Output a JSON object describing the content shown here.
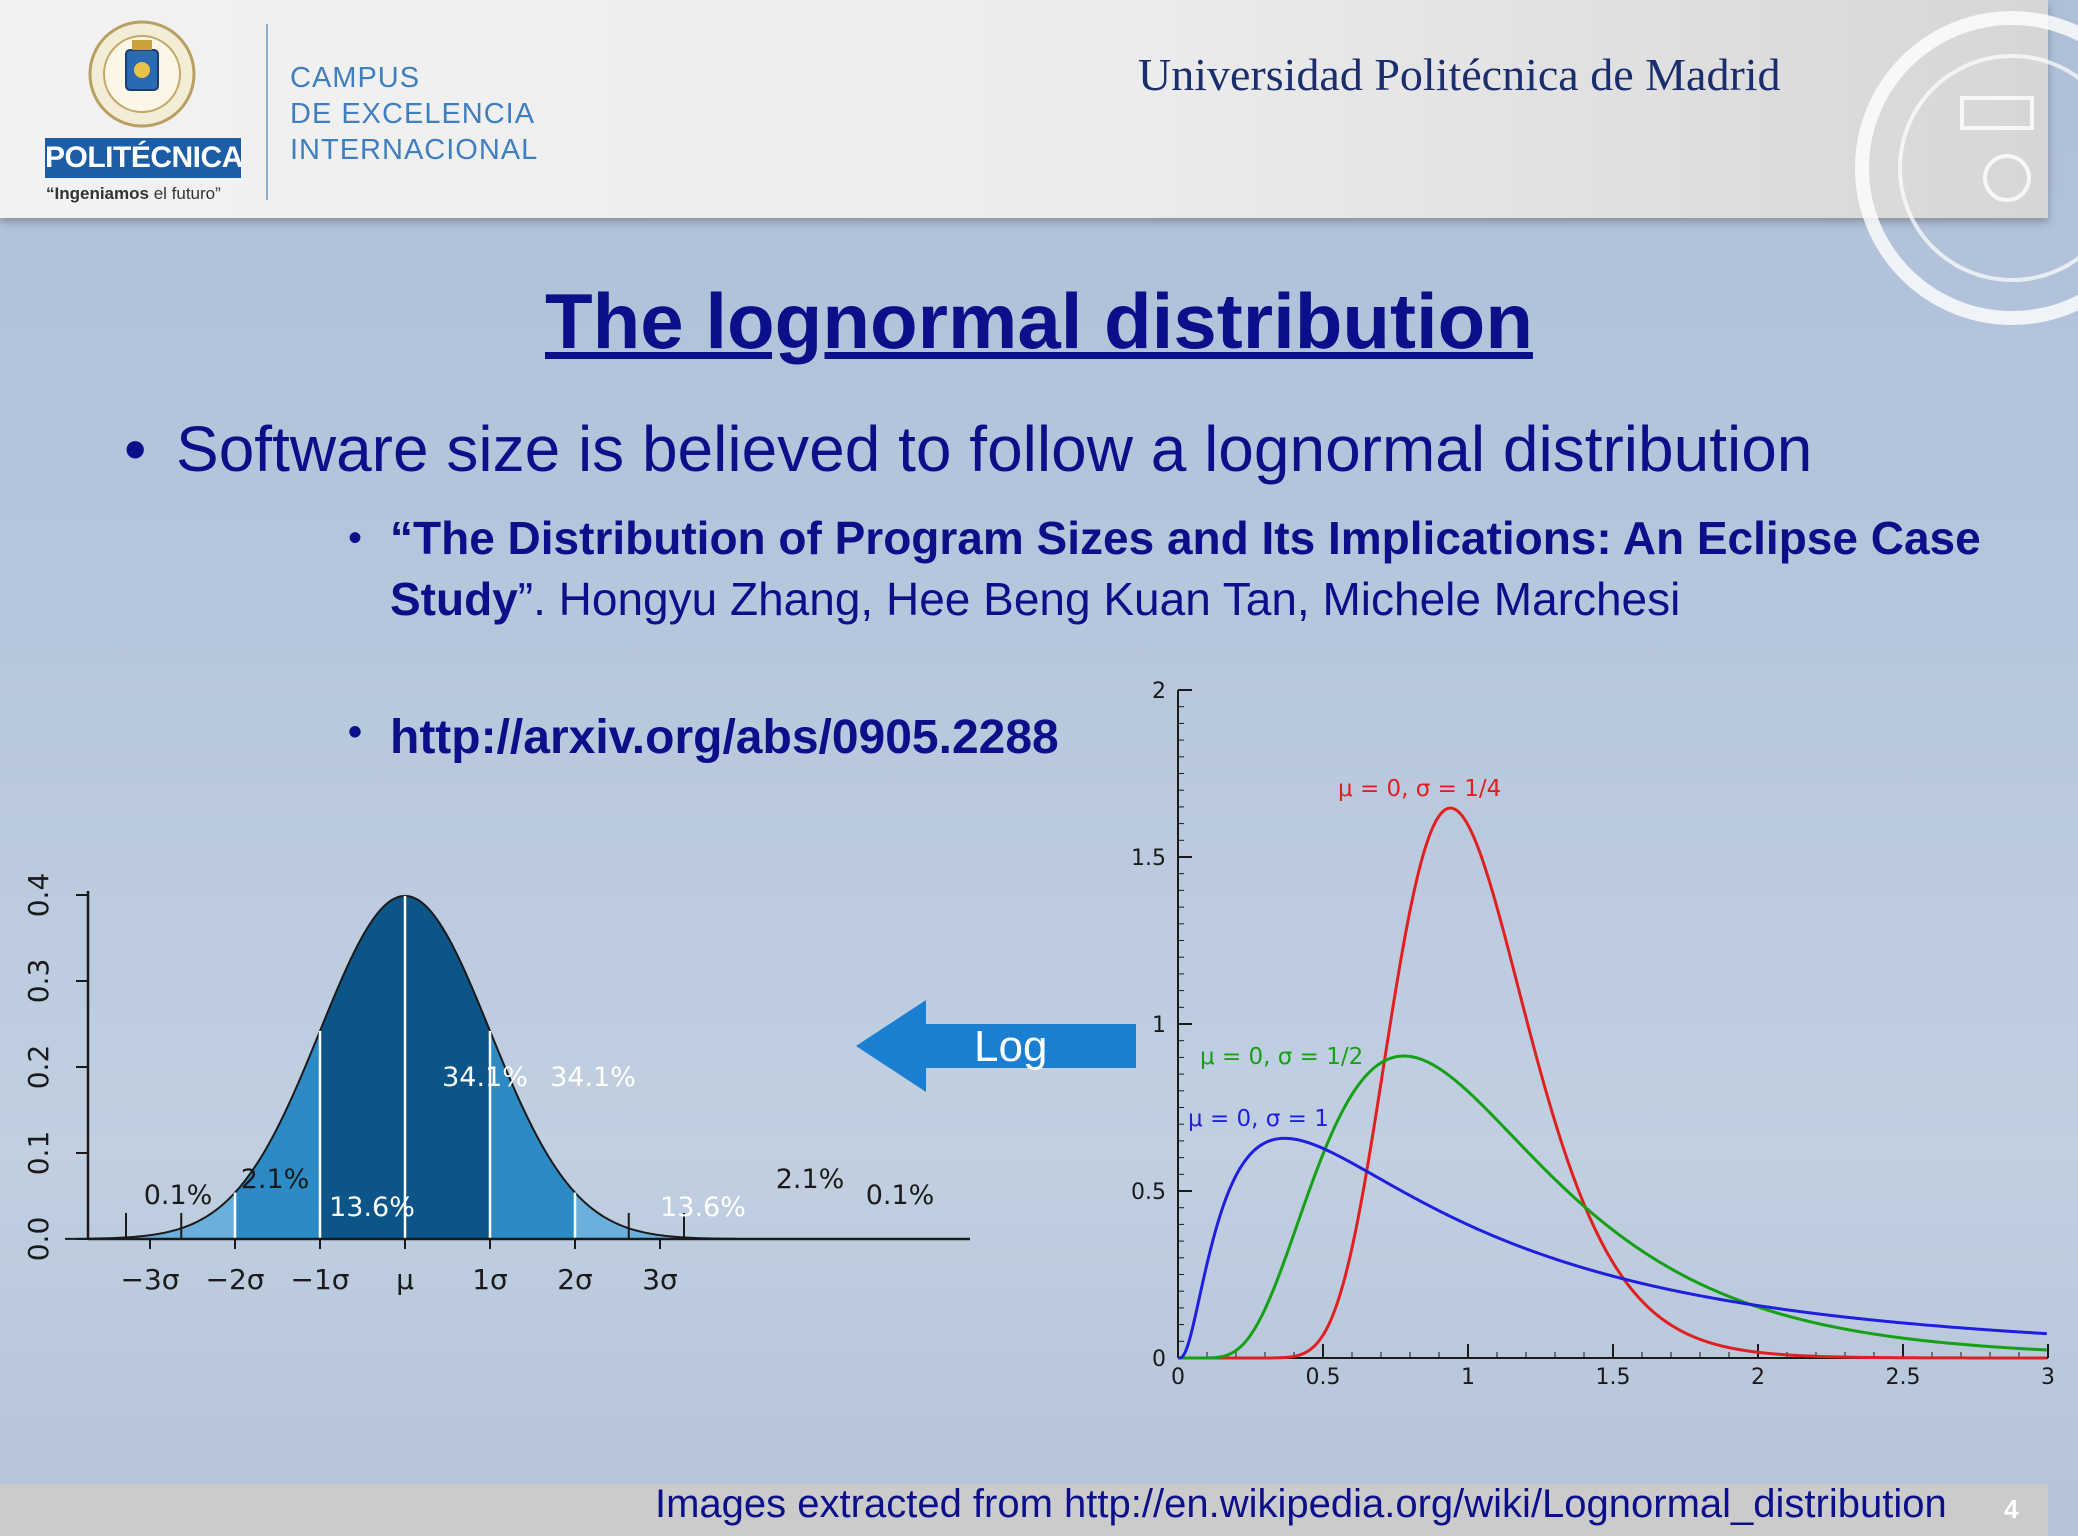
{
  "header": {
    "logo_name": "POLITÉCNICA",
    "logo_tagline_bold": "“Ingeniamos",
    "logo_tagline_rest": " el futuro”",
    "campus_lines": [
      "CAMPUS",
      "DE EXCELENCIA",
      "INTERNACIONAL"
    ],
    "university_name": "Universidad Politécnica de Madrid"
  },
  "slide": {
    "title": "The lognormal distribution",
    "bullet1": "Software size is believed to follow a lognormal distribution",
    "bullet2_bold": "“The Distribution of Program Sizes and Its Implications: An Eclipse Case Study",
    "bullet2_rest": "”. Hongyu Zhang, Hee Beng Kuan Tan, Michele Marchesi",
    "bullet3": "http://arxiv.org/abs/0905.2288",
    "arrow_label": "Log",
    "footer": "Images extracted from http://en.wikipedia.org/wiki/Lognormal_distribution",
    "page_number": "4"
  },
  "chart_data": [
    {
      "type": "area",
      "x_ticks": [
        "−3σ",
        "−2σ",
        "−1σ",
        "μ",
        "1σ",
        "2σ",
        "3σ"
      ],
      "y_ticks": [
        "0.0",
        "0.1",
        "0.2",
        "0.3",
        "0.4"
      ],
      "ylim": [
        0,
        0.4
      ],
      "region_labels": {
        "left_tail": "0.1%",
        "left_outer": "2.1%",
        "left_mid": "13.6%",
        "left_center": "34.1%",
        "right_center": "34.1%",
        "right_mid": "13.6%",
        "right_outer": "2.1%",
        "right_tail": "0.1%"
      },
      "colors": {
        "center": "#0b5588",
        "mid": "#2c8bc4",
        "outer": "#6bb0dc"
      }
    },
    {
      "type": "line",
      "xlim": [
        0,
        3
      ],
      "ylim": [
        0,
        2
      ],
      "x_ticks": [
        "0",
        "0.5",
        "1",
        "1.5",
        "2",
        "2.5",
        "3"
      ],
      "y_ticks": [
        "0",
        "0.5",
        "1",
        "1.5",
        "2"
      ],
      "series": [
        {
          "name": "μ = 0, σ = 1/4",
          "mu": 0,
          "sigma": 0.25,
          "color": "#e02020"
        },
        {
          "name": "μ = 0, σ = 1/2",
          "mu": 0,
          "sigma": 0.5,
          "color": "#16a016"
        },
        {
          "name": "μ = 0, σ = 1",
          "mu": 0,
          "sigma": 1,
          "color": "#1f1fe0"
        }
      ]
    }
  ]
}
